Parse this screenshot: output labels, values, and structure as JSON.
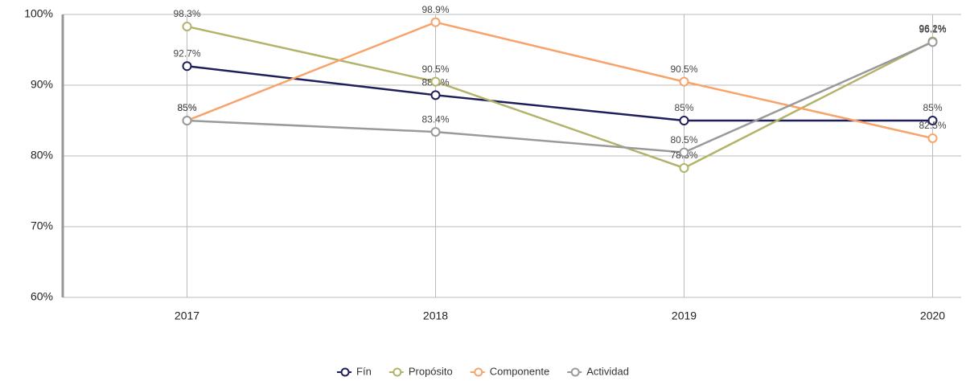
{
  "chart_data": {
    "type": "line",
    "categories": [
      "2017",
      "2018",
      "2019",
      "2020"
    ],
    "series": [
      {
        "name": "Fín",
        "color": "#1e1e5a",
        "values": [
          92.7,
          88.6,
          85,
          85
        ],
        "value_labels": [
          "92.7%",
          "88.6%",
          "85%",
          "85%"
        ]
      },
      {
        "name": "Propósito",
        "color": "#b3b36b",
        "values": [
          98.3,
          90.5,
          78.3,
          96.2
        ],
        "value_labels": [
          "98.3%",
          "90.5%",
          "78.3%",
          "96.2%"
        ]
      },
      {
        "name": "Componente",
        "color": "#f7a36a",
        "values": [
          85,
          98.9,
          90.5,
          82.5
        ],
        "value_labels": [
          "85%",
          "98.9%",
          "90.5%",
          "82.5%"
        ]
      },
      {
        "name": "Actividad",
        "color": "#9a9a9a",
        "values": [
          85,
          83.4,
          80.5,
          96.1
        ],
        "value_labels": [
          "85%",
          "83.4%",
          "80.5%",
          "96.1%"
        ]
      }
    ],
    "ylim": [
      60,
      100
    ],
    "yticks": [
      {
        "value": 60,
        "label": "60%"
      },
      {
        "value": 70,
        "label": "70%"
      },
      {
        "value": 80,
        "label": "80%"
      },
      {
        "value": 90,
        "label": "90%"
      },
      {
        "value": 100,
        "label": "100%"
      }
    ],
    "grid": true,
    "legend": "bottom"
  }
}
